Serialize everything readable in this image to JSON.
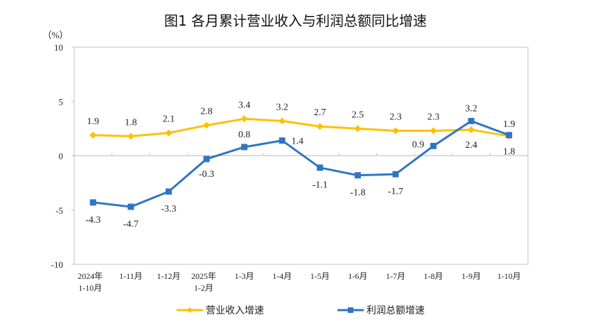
{
  "chart_data": {
    "type": "line",
    "title": "图1  各月累计营业收入与利润总额同比增速",
    "ylabel": "（%）",
    "ylim": [
      -10,
      10
    ],
    "yticks": [
      10,
      5,
      0,
      -5,
      -10
    ],
    "categories": [
      [
        "2024年",
        "1-10月"
      ],
      [
        "1-11月"
      ],
      [
        "1-12月"
      ],
      [
        "2025年",
        "1-2月"
      ],
      [
        "1-3月"
      ],
      [
        "1-4月"
      ],
      [
        "1-5月"
      ],
      [
        "1-6月"
      ],
      [
        "1-7月"
      ],
      [
        "1-8月"
      ],
      [
        "1-9月"
      ],
      [
        "1-10月"
      ]
    ],
    "series": [
      {
        "name": "营业收入增速",
        "color": "#FFC000",
        "marker": "diamond",
        "values": [
          1.9,
          1.8,
          2.1,
          2.8,
          3.4,
          3.2,
          2.7,
          2.5,
          2.3,
          2.3,
          2.4,
          1.8
        ],
        "labels": [
          "1.9",
          "1.8",
          "2.1",
          "2.8",
          "3.4",
          "3.2",
          "2.7",
          "2.5",
          "2.3",
          "2.3",
          "2.4",
          "1.8"
        ]
      },
      {
        "name": "利润总额增速",
        "color": "#2E75C6",
        "marker": "square",
        "values": [
          -4.3,
          -4.7,
          -3.3,
          -0.3,
          0.8,
          1.4,
          -1.1,
          -1.8,
          -1.7,
          0.9,
          3.2,
          1.9
        ],
        "labels": [
          "-4.3",
          "-4.7",
          "-3.3",
          "-0.3",
          "0.8",
          "1.4",
          "-1.1",
          "-1.8",
          "-1.7",
          "0.9",
          "3.2",
          "1.9"
        ]
      }
    ],
    "legend": "bottom",
    "grid": false
  }
}
